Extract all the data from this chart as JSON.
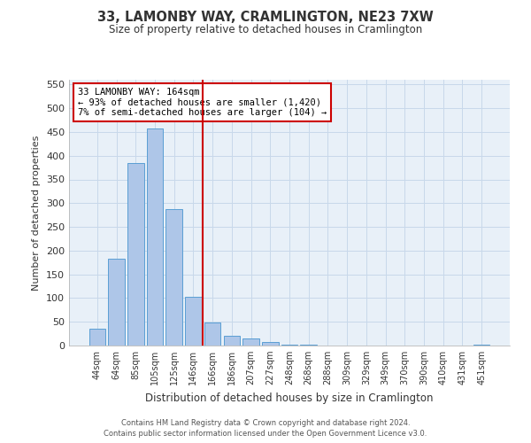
{
  "title": "33, LAMONBY WAY, CRAMLINGTON, NE23 7XW",
  "subtitle": "Size of property relative to detached houses in Cramlington",
  "xlabel": "Distribution of detached houses by size in Cramlington",
  "ylabel": "Number of detached properties",
  "categories": [
    "44sqm",
    "64sqm",
    "85sqm",
    "105sqm",
    "125sqm",
    "146sqm",
    "166sqm",
    "186sqm",
    "207sqm",
    "227sqm",
    "248sqm",
    "268sqm",
    "288sqm",
    "309sqm",
    "329sqm",
    "349sqm",
    "370sqm",
    "390sqm",
    "410sqm",
    "431sqm",
    "451sqm"
  ],
  "values": [
    35,
    183,
    385,
    458,
    288,
    103,
    48,
    20,
    15,
    8,
    2,
    1,
    0,
    0,
    0,
    0,
    0,
    0,
    0,
    0,
    1
  ],
  "bar_color": "#aec6e8",
  "bar_edge_color": "#5a9fd4",
  "property_line_color": "#cc0000",
  "annotation_box_text": "33 LAMONBY WAY: 164sqm\n← 93% of detached houses are smaller (1,420)\n7% of semi-detached houses are larger (104) →",
  "annotation_box_color": "#cc0000",
  "ylim": [
    0,
    560
  ],
  "yticks": [
    0,
    50,
    100,
    150,
    200,
    250,
    300,
    350,
    400,
    450,
    500,
    550
  ],
  "grid_color": "#c8d8ea",
  "background_color": "#e8f0f8",
  "footer_line1": "Contains HM Land Registry data © Crown copyright and database right 2024.",
  "footer_line2": "Contains public sector information licensed under the Open Government Licence v3.0."
}
